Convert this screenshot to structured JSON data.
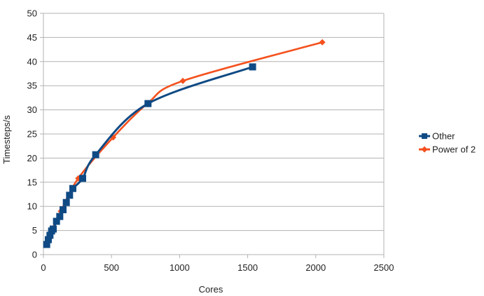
{
  "chart_data": {
    "type": "line",
    "title": "",
    "xlabel": "Cores",
    "ylabel": "Timesteps/s",
    "xlim": [
      0,
      2500
    ],
    "ylim": [
      0,
      50
    ],
    "xticks": [
      0,
      500,
      1000,
      1500,
      2000,
      2500
    ],
    "yticks": [
      0,
      5,
      10,
      15,
      20,
      25,
      30,
      35,
      40,
      45,
      50
    ],
    "grid": "horizontal",
    "legend_position": "right",
    "series": [
      {
        "name": "Other",
        "color": "#0f4a84",
        "marker": "square",
        "x": [
          24,
          36,
          48,
          60,
          72,
          96,
          120,
          144,
          168,
          192,
          216,
          288,
          384,
          768,
          1536
        ],
        "y": [
          2.1,
          3.1,
          4.0,
          4.9,
          5.3,
          6.9,
          7.9,
          9.3,
          10.8,
          12.3,
          13.7,
          15.8,
          20.7,
          31.3,
          38.9
        ]
      },
      {
        "name": "Power of 2",
        "color": "#f4511e",
        "marker": "diamond",
        "x": [
          32,
          64,
          128,
          256,
          512,
          768,
          1024,
          2048
        ],
        "y": [
          2.8,
          5.2,
          9.0,
          15.8,
          24.3,
          31.4,
          36.0,
          44.0
        ]
      }
    ]
  }
}
